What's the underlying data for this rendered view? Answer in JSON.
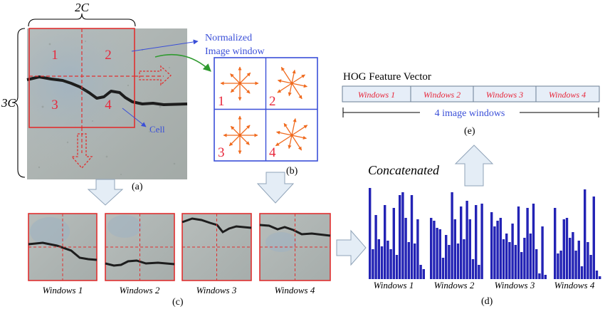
{
  "panel_a": {
    "width_label": "2C",
    "height_label": "3C",
    "cell_numbers": [
      "1",
      "2",
      "3",
      "4"
    ],
    "callout_window": [
      "Normalized",
      "Image window"
    ],
    "callout_cell": "Cell",
    "caption": "(a)"
  },
  "panel_b": {
    "cell_numbers": [
      "1",
      "2",
      "3",
      "4"
    ],
    "caption": "(b)"
  },
  "panel_c": {
    "window_labels": [
      "Windows 1",
      "Windows 2",
      "Windows 3",
      "Windows 4"
    ],
    "caption": "(c)"
  },
  "panel_d": {
    "concatenated_label": "Concatenated",
    "window_labels": [
      "Windows 1",
      "Windows 2",
      "Windows 3",
      "Windows 4"
    ],
    "caption": "(d)"
  },
  "panel_e": {
    "title": "HOG Feature Vector",
    "segments": [
      "Windows 1",
      "Windows 2",
      "Windows 3",
      "Windows 4"
    ],
    "span_label": "4 image windows",
    "caption": "(e)"
  },
  "colors": {
    "grid_red": "#e03030",
    "cell_number_red": "#e8283c",
    "callout_blue": "#3a4fd8",
    "histogram_blue": "#2323b5",
    "gradient_orange": "#f06a1e",
    "vector_fill": "#e6eef8",
    "arrow_fill": "#e4edf6",
    "arrow_stroke": "#8fa3b8"
  }
}
